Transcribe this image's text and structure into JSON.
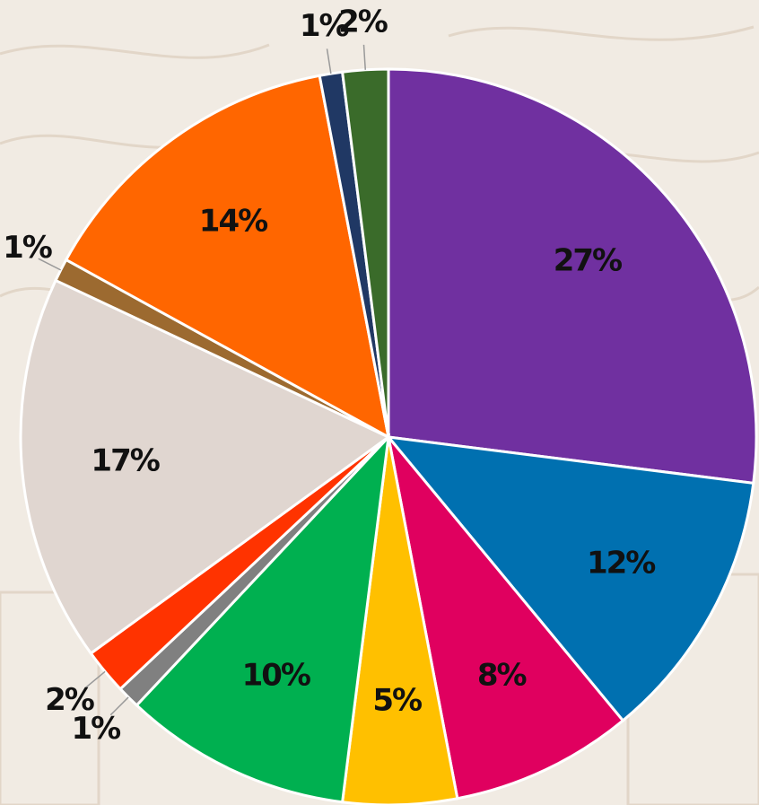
{
  "chart_data": {
    "type": "pie",
    "values": [
      27,
      12,
      8,
      5,
      10,
      1,
      2,
      17,
      1,
      14,
      1,
      2
    ],
    "value_labels": [
      "27%",
      "12%",
      "8%",
      "5%",
      "10%",
      "1%",
      "2%",
      "17%",
      "1%",
      "14%",
      "1%",
      "2%"
    ],
    "colors": [
      "#7030a0",
      "#0070b0",
      "#e0005f",
      "#ffc000",
      "#00b050",
      "#808080",
      "#ff3300",
      "#e0d6d0",
      "#9c6a30",
      "#ff6600",
      "#203864",
      "#3a6b2a"
    ]
  }
}
